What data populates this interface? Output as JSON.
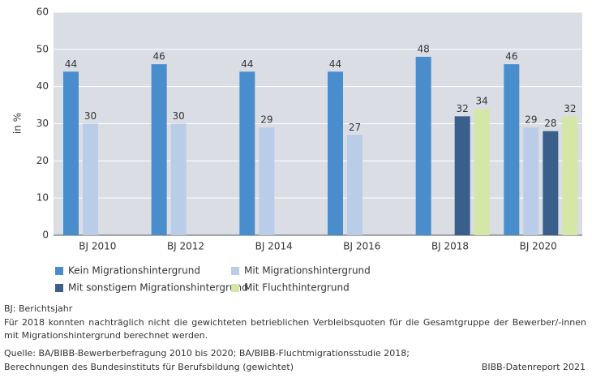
{
  "chart_data": {
    "type": "bar",
    "y_label": "in %",
    "categories": [
      "BJ 2010",
      "BJ 2012",
      "BJ 2014",
      "BJ 2016",
      "BJ 2018",
      "BJ 2020"
    ],
    "series": [
      {
        "name": "Kein Migrationshintergrund",
        "color": "#4a8dcc",
        "values": [
          44,
          46,
          44,
          44,
          48,
          46
        ]
      },
      {
        "name": "Mit Migrationshintergrund",
        "color": "#b9cde8",
        "values": [
          30,
          30,
          29,
          27,
          null,
          29
        ]
      },
      {
        "name": "Mit sonstigem Migrationshintergrund",
        "color": "#3b5f8b",
        "values": [
          null,
          null,
          null,
          null,
          32,
          28
        ]
      },
      {
        "name": "Mit Fluchthintergrund",
        "color": "#d5e7a7",
        "values": [
          null,
          null,
          null,
          null,
          34,
          32
        ]
      }
    ],
    "ylim": [
      0,
      60
    ],
    "yticks": [
      0,
      10,
      20,
      30,
      40,
      50,
      60
    ],
    "grid": true,
    "legend": "bottom"
  },
  "notes": {
    "abbreviation": "BJ: Berichtsjahr",
    "remark": "Für 2018 konnten nachträglich nicht die gewichteten betrieblichen Verbleibsquoten für die Gesamtgruppe der Bewerber/-innen mit Migrationshintergrund berechnet werden.",
    "source_1": "Quelle: BA/BIBB-Bewerberbefragung 2010 bis 2020; BA/BIBB-Fluchtmigrationsstudie 2018;",
    "source_2": "Berechnungen des Bundesinstituts für Berufsbildung (gewichtet)",
    "credit": "BIBB-Datenreport 2021"
  }
}
